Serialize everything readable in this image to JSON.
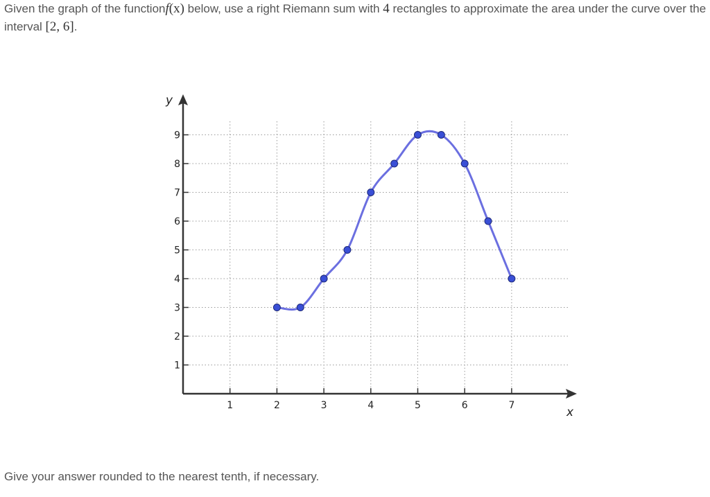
{
  "question": {
    "part1": "Given the graph of the function",
    "func_name": "f",
    "func_arg": "(x)",
    "part2": "below, use a right Riemann sum with",
    "rect_count": "4",
    "part3": "rectangles to approximate the area under the curve over the interval",
    "interval": "[2, 6]",
    "end": "."
  },
  "footer": "Give your answer rounded to the nearest tenth, if necessary.",
  "chart_data": {
    "type": "line",
    "xlabel": "x",
    "ylabel": "y",
    "xlim": [
      0,
      8.5
    ],
    "ylim": [
      0,
      9.8
    ],
    "xticks": [
      "1",
      "2",
      "3",
      "4",
      "5",
      "6",
      "7"
    ],
    "yticks": [
      "1",
      "2",
      "3",
      "4",
      "5",
      "6",
      "7",
      "8",
      "9"
    ],
    "grid": true,
    "grid_style": "dotted",
    "line_color": "#6b6fe0",
    "point_color": "#3a4fd6",
    "points": [
      {
        "x": 2,
        "y": 3
      },
      {
        "x": 2.5,
        "y": 3
      },
      {
        "x": 3,
        "y": 4
      },
      {
        "x": 3.5,
        "y": 5
      },
      {
        "x": 4,
        "y": 7
      },
      {
        "x": 4.5,
        "y": 8
      },
      {
        "x": 5,
        "y": 9
      },
      {
        "x": 5.5,
        "y": 9
      },
      {
        "x": 6,
        "y": 8
      },
      {
        "x": 6.5,
        "y": 6
      },
      {
        "x": 7,
        "y": 4
      }
    ]
  }
}
